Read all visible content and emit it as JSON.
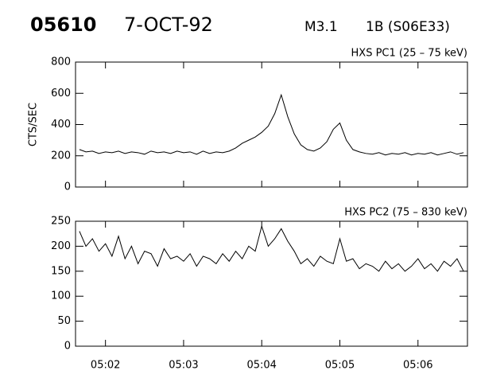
{
  "header": {
    "event": "05610",
    "date": "7-OCT-92",
    "class": "M3.1",
    "location": "1B (S06E33)"
  },
  "chart_data": [
    {
      "type": "line",
      "title": "HXS PC1 (25 – 75 keV)",
      "y_label": "CTS/SEC",
      "x": [
        "05:01:40",
        "05:01:45",
        "05:01:50",
        "05:01:55",
        "05:02:00",
        "05:02:05",
        "05:02:10",
        "05:02:15",
        "05:02:20",
        "05:02:25",
        "05:02:30",
        "05:02:35",
        "05:02:40",
        "05:02:45",
        "05:02:50",
        "05:02:55",
        "05:03:00",
        "05:03:05",
        "05:03:10",
        "05:03:15",
        "05:03:20",
        "05:03:25",
        "05:03:30",
        "05:03:35",
        "05:03:40",
        "05:03:45",
        "05:03:50",
        "05:03:55",
        "05:04:00",
        "05:04:05",
        "05:04:10",
        "05:04:15",
        "05:04:20",
        "05:04:25",
        "05:04:30",
        "05:04:35",
        "05:04:40",
        "05:04:45",
        "05:04:50",
        "05:04:55",
        "05:05:00",
        "05:05:05",
        "05:05:10",
        "05:05:15",
        "05:05:20",
        "05:05:25",
        "05:05:30",
        "05:05:35",
        "05:05:40",
        "05:05:45",
        "05:05:50",
        "05:05:55",
        "05:06:00",
        "05:06:05",
        "05:06:10",
        "05:06:15",
        "05:06:20",
        "05:06:25",
        "05:06:30",
        "05:06:35"
      ],
      "values": [
        240,
        225,
        230,
        215,
        225,
        220,
        230,
        215,
        225,
        220,
        210,
        230,
        220,
        225,
        215,
        230,
        220,
        225,
        210,
        230,
        215,
        225,
        220,
        230,
        250,
        280,
        300,
        320,
        350,
        390,
        470,
        590,
        450,
        340,
        270,
        240,
        230,
        250,
        290,
        370,
        410,
        300,
        240,
        225,
        215,
        210,
        220,
        205,
        215,
        210,
        220,
        205,
        215,
        210,
        220,
        205,
        215,
        225,
        210,
        220
      ],
      "color": "#000000",
      "xlim": [
        "05:01:37",
        "05:06:38"
      ],
      "ylim": [
        0,
        800
      ],
      "yticks": [
        0,
        200,
        400,
        600,
        800
      ]
    },
    {
      "type": "line",
      "title": "HXS PC2 (75 – 830 keV)",
      "x": [
        "05:01:40",
        "05:01:45",
        "05:01:50",
        "05:01:55",
        "05:02:00",
        "05:02:05",
        "05:02:10",
        "05:02:15",
        "05:02:20",
        "05:02:25",
        "05:02:30",
        "05:02:35",
        "05:02:40",
        "05:02:45",
        "05:02:50",
        "05:02:55",
        "05:03:00",
        "05:03:05",
        "05:03:10",
        "05:03:15",
        "05:03:20",
        "05:03:25",
        "05:03:30",
        "05:03:35",
        "05:03:40",
        "05:03:45",
        "05:03:50",
        "05:03:55",
        "05:04:00",
        "05:04:05",
        "05:04:10",
        "05:04:15",
        "05:04:20",
        "05:04:25",
        "05:04:30",
        "05:04:35",
        "05:04:40",
        "05:04:45",
        "05:04:50",
        "05:04:55",
        "05:05:00",
        "05:05:05",
        "05:05:10",
        "05:05:15",
        "05:05:20",
        "05:05:25",
        "05:05:30",
        "05:05:35",
        "05:05:40",
        "05:05:45",
        "05:05:50",
        "05:05:55",
        "05:06:00",
        "05:06:05",
        "05:06:10",
        "05:06:15",
        "05:06:20",
        "05:06:25",
        "05:06:30",
        "05:06:35"
      ],
      "values": [
        230,
        200,
        215,
        190,
        205,
        180,
        220,
        175,
        200,
        165,
        190,
        185,
        160,
        195,
        175,
        180,
        170,
        185,
        160,
        180,
        175,
        165,
        185,
        170,
        190,
        175,
        200,
        190,
        240,
        200,
        215,
        235,
        210,
        190,
        165,
        175,
        160,
        180,
        170,
        165,
        215,
        170,
        175,
        155,
        165,
        160,
        150,
        170,
        155,
        165,
        150,
        160,
        175,
        155,
        165,
        150,
        170,
        160,
        175,
        150
      ],
      "color": "#000000",
      "xlim": [
        "05:01:37",
        "05:06:38"
      ],
      "xticks": [
        "05:02",
        "05:03",
        "05:04",
        "05:05",
        "05:06"
      ],
      "ylim": [
        0,
        250
      ],
      "yticks": [
        0,
        50,
        100,
        150,
        200,
        250
      ]
    }
  ]
}
